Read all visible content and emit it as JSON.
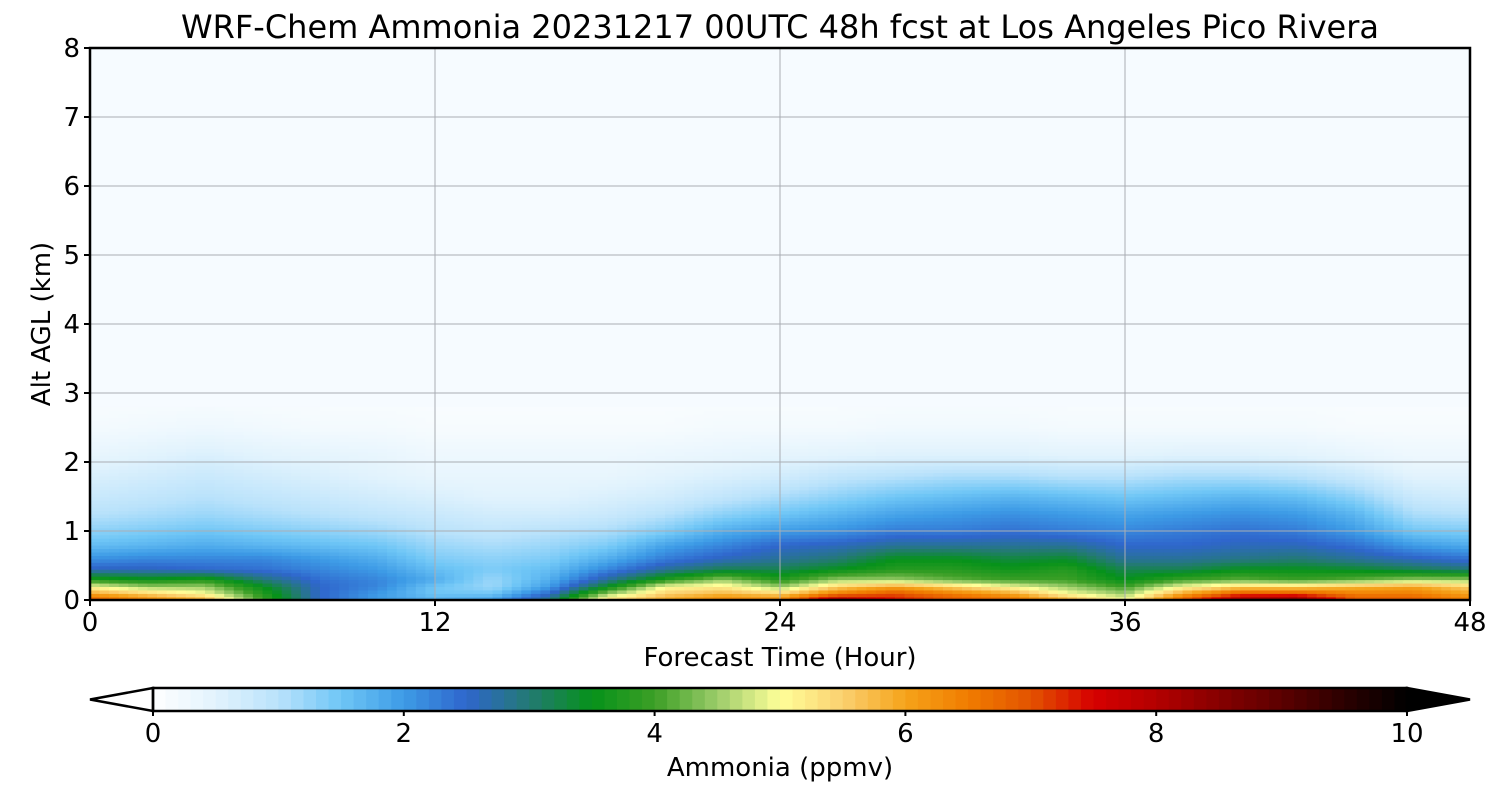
{
  "chart_data": {
    "type": "heatmap",
    "title": "WRF-Chem Ammonia  20231217 00UTC 48h fcst at Los Angeles Pico Rivera",
    "xlabel": "Forecast Time (Hour)",
    "ylabel": "Alt AGL (km)",
    "xlim": [
      0,
      48
    ],
    "ylim": [
      0,
      8
    ],
    "xticks": [
      0,
      12,
      24,
      36,
      48
    ],
    "yticks": [
      0,
      1,
      2,
      3,
      4,
      5,
      6,
      7,
      8
    ],
    "grid": true,
    "colorbar": {
      "label": "Ammonia  (ppmv)",
      "min": 0,
      "max": 10,
      "ticks": [
        0,
        2,
        4,
        6,
        8,
        10
      ],
      "extend": "both",
      "orientation": "horizontal",
      "placement": "bottom"
    },
    "x": [
      0,
      2,
      4,
      6,
      8,
      10,
      12,
      14,
      16,
      18,
      20,
      22,
      24,
      26,
      28,
      30,
      32,
      34,
      36,
      38,
      40,
      42,
      44,
      46,
      48
    ],
    "y": [
      0.0,
      0.1,
      0.2,
      0.3,
      0.45,
      0.6,
      0.8,
      1.0,
      1.25,
      1.5,
      1.8,
      2.1,
      2.5,
      3.0,
      4.0,
      5.0,
      6.0,
      7.0,
      8.0
    ],
    "values": [
      [
        7.0,
        6.5,
        6.0,
        4.0,
        2.5,
        2.0,
        1.8,
        2.0,
        3.0,
        5.5,
        6.0,
        6.5,
        6.5,
        8.5,
        7.5,
        7.0,
        6.8,
        6.0,
        5.0,
        7.0,
        8.5,
        8.8,
        7.0,
        7.0,
        6.5
      ],
      [
        6.0,
        5.5,
        5.0,
        3.8,
        2.5,
        2.0,
        1.5,
        1.5,
        2.5,
        4.5,
        5.5,
        5.8,
        5.5,
        6.5,
        7.0,
        6.5,
        6.0,
        5.0,
        4.5,
        6.0,
        7.0,
        7.0,
        6.5,
        6.5,
        6.0
      ],
      [
        5.0,
        4.5,
        4.5,
        3.5,
        2.5,
        2.2,
        1.5,
        1.2,
        2.0,
        3.5,
        5.0,
        5.2,
        4.5,
        5.5,
        6.0,
        5.5,
        5.0,
        4.5,
        4.0,
        5.0,
        5.5,
        5.5,
        5.8,
        6.0,
        5.5
      ],
      [
        3.8,
        3.6,
        3.8,
        3.0,
        2.4,
        2.2,
        1.8,
        1.2,
        1.8,
        2.8,
        3.8,
        4.5,
        3.8,
        4.5,
        4.5,
        4.2,
        4.0,
        4.0,
        3.5,
        4.0,
        4.2,
        4.0,
        4.2,
        4.5,
        4.5
      ],
      [
        2.6,
        2.6,
        2.5,
        2.4,
        2.2,
        2.0,
        1.6,
        1.4,
        1.6,
        2.2,
        2.8,
        3.2,
        3.2,
        3.5,
        3.8,
        3.8,
        3.6,
        3.8,
        3.2,
        3.2,
        3.5,
        3.5,
        3.4,
        3.2,
        3.0
      ],
      [
        2.1,
        2.2,
        2.2,
        2.2,
        2.0,
        1.8,
        1.4,
        1.3,
        1.4,
        1.8,
        2.3,
        2.6,
        2.8,
        3.0,
        3.5,
        3.5,
        3.3,
        3.4,
        2.8,
        2.8,
        2.9,
        3.0,
        2.8,
        2.6,
        2.4
      ],
      [
        1.6,
        1.7,
        1.8,
        1.7,
        1.6,
        1.5,
        1.2,
        1.1,
        1.2,
        1.4,
        1.9,
        2.2,
        2.5,
        2.6,
        2.8,
        2.8,
        2.8,
        2.8,
        2.5,
        2.5,
        2.6,
        2.6,
        2.4,
        2.0,
        1.8
      ],
      [
        1.3,
        1.4,
        1.5,
        1.4,
        1.3,
        1.2,
        1.0,
        0.9,
        1.0,
        1.1,
        1.4,
        1.8,
        2.0,
        2.1,
        2.3,
        2.3,
        2.4,
        2.3,
        2.2,
        2.3,
        2.4,
        2.3,
        2.0,
        1.5,
        1.4
      ],
      [
        1.0,
        1.1,
        1.2,
        1.1,
        1.0,
        0.9,
        0.8,
        0.7,
        0.7,
        0.8,
        1.0,
        1.3,
        1.5,
        1.7,
        1.9,
        2.0,
        2.1,
        2.0,
        1.9,
        2.0,
        2.1,
        2.0,
        1.7,
        1.1,
        1.0
      ],
      [
        0.8,
        0.9,
        1.0,
        0.9,
        0.8,
        0.7,
        0.6,
        0.5,
        0.5,
        0.6,
        0.7,
        0.9,
        1.1,
        1.3,
        1.5,
        1.6,
        1.7,
        1.6,
        1.5,
        1.6,
        1.7,
        1.6,
        1.3,
        0.8,
        0.7
      ],
      [
        0.6,
        0.7,
        0.8,
        0.7,
        0.6,
        0.5,
        0.4,
        0.4,
        0.4,
        0.4,
        0.5,
        0.6,
        0.7,
        0.9,
        1.0,
        1.1,
        1.1,
        1.0,
        1.0,
        1.1,
        1.1,
        1.0,
        0.8,
        0.5,
        0.5
      ],
      [
        0.4,
        0.5,
        0.6,
        0.5,
        0.45,
        0.4,
        0.3,
        0.3,
        0.3,
        0.3,
        0.35,
        0.4,
        0.45,
        0.5,
        0.55,
        0.55,
        0.55,
        0.5,
        0.5,
        0.55,
        0.55,
        0.5,
        0.4,
        0.3,
        0.3
      ],
      [
        0.2,
        0.25,
        0.3,
        0.25,
        0.2,
        0.2,
        0.15,
        0.15,
        0.15,
        0.15,
        0.15,
        0.2,
        0.2,
        0.2,
        0.25,
        0.25,
        0.25,
        0.2,
        0.2,
        0.2,
        0.2,
        0.2,
        0.15,
        0.15,
        0.15
      ],
      [
        0.1,
        0.1,
        0.1,
        0.1,
        0.1,
        0.1,
        0.1,
        0.1,
        0.1,
        0.1,
        0.1,
        0.1,
        0.1,
        0.1,
        0.1,
        0.1,
        0.1,
        0.1,
        0.1,
        0.1,
        0.1,
        0.1,
        0.1,
        0.1,
        0.1
      ],
      [
        0.05,
        0.05,
        0.05,
        0.05,
        0.05,
        0.05,
        0.05,
        0.05,
        0.05,
        0.05,
        0.05,
        0.05,
        0.05,
        0.05,
        0.05,
        0.05,
        0.05,
        0.05,
        0.05,
        0.05,
        0.05,
        0.05,
        0.05,
        0.05,
        0.05
      ],
      [
        0.05,
        0.05,
        0.05,
        0.05,
        0.05,
        0.05,
        0.05,
        0.05,
        0.05,
        0.05,
        0.05,
        0.05,
        0.05,
        0.05,
        0.05,
        0.05,
        0.05,
        0.05,
        0.05,
        0.05,
        0.05,
        0.05,
        0.05,
        0.05,
        0.05
      ],
      [
        0.05,
        0.05,
        0.05,
        0.05,
        0.05,
        0.05,
        0.05,
        0.05,
        0.05,
        0.05,
        0.05,
        0.05,
        0.05,
        0.05,
        0.05,
        0.05,
        0.05,
        0.05,
        0.05,
        0.05,
        0.05,
        0.05,
        0.05,
        0.05,
        0.05
      ],
      [
        0.05,
        0.05,
        0.05,
        0.05,
        0.05,
        0.05,
        0.05,
        0.05,
        0.05,
        0.05,
        0.05,
        0.05,
        0.05,
        0.05,
        0.05,
        0.05,
        0.05,
        0.05,
        0.05,
        0.05,
        0.05,
        0.05,
        0.05,
        0.05,
        0.05
      ],
      [
        0.05,
        0.05,
        0.05,
        0.05,
        0.05,
        0.05,
        0.05,
        0.05,
        0.05,
        0.05,
        0.05,
        0.05,
        0.05,
        0.05,
        0.05,
        0.05,
        0.05,
        0.05,
        0.05,
        0.05,
        0.05,
        0.05,
        0.05,
        0.05,
        0.05
      ]
    ],
    "colormap": [
      [
        0.0,
        "#ffffff"
      ],
      [
        0.5,
        "#e2f3fd"
      ],
      [
        1.0,
        "#b9e2fb"
      ],
      [
        1.5,
        "#6fc6f6"
      ],
      [
        2.0,
        "#3d9be6"
      ],
      [
        2.5,
        "#2f66cc"
      ],
      [
        3.0,
        "#237a73"
      ],
      [
        3.5,
        "#06921a"
      ],
      [
        4.0,
        "#3c9f26"
      ],
      [
        4.5,
        "#9ccc6a"
      ],
      [
        5.0,
        "#ffff99"
      ],
      [
        5.5,
        "#fbd070"
      ],
      [
        6.0,
        "#f5a31a"
      ],
      [
        6.5,
        "#f07c00"
      ],
      [
        7.0,
        "#e35300"
      ],
      [
        7.5,
        "#d60000"
      ],
      [
        8.0,
        "#b30000"
      ],
      [
        8.5,
        "#860000"
      ],
      [
        9.0,
        "#5c0000"
      ],
      [
        9.5,
        "#2b0000"
      ],
      [
        10.0,
        "#000000"
      ]
    ]
  }
}
